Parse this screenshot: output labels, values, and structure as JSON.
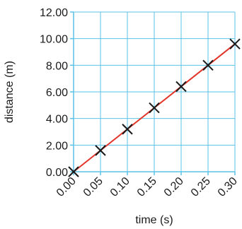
{
  "chart_data": {
    "type": "line",
    "title": "",
    "xlabel": "time (s)",
    "ylabel": "distance (m)",
    "x_tick_labels": [
      "0.00",
      "0.05",
      "0.10",
      "0.15",
      "0.20",
      "0.25",
      "0.30"
    ],
    "y_tick_labels": [
      "0.00",
      "2.00",
      "4.00",
      "6.00",
      "8.00",
      "10.00",
      "12.00"
    ],
    "xlim": [
      0,
      0.3
    ],
    "ylim": [
      0,
      12
    ],
    "x_ticks": [
      0,
      0.05,
      0.1,
      0.15,
      0.2,
      0.25,
      0.3
    ],
    "y_ticks": [
      0,
      2,
      4,
      6,
      8,
      10,
      12
    ],
    "grid": true,
    "grid_color": "#5bc2e7",
    "line_color": "#e3342a",
    "marker": "x",
    "marker_color": "#1a1a1a",
    "points": [
      {
        "x": 0.0,
        "y": 0.0
      },
      {
        "x": 0.05,
        "y": 1.6
      },
      {
        "x": 0.1,
        "y": 3.2
      },
      {
        "x": 0.15,
        "y": 4.8
      },
      {
        "x": 0.2,
        "y": 6.4
      },
      {
        "x": 0.25,
        "y": 8.0
      },
      {
        "x": 0.3,
        "y": 9.6
      }
    ]
  }
}
